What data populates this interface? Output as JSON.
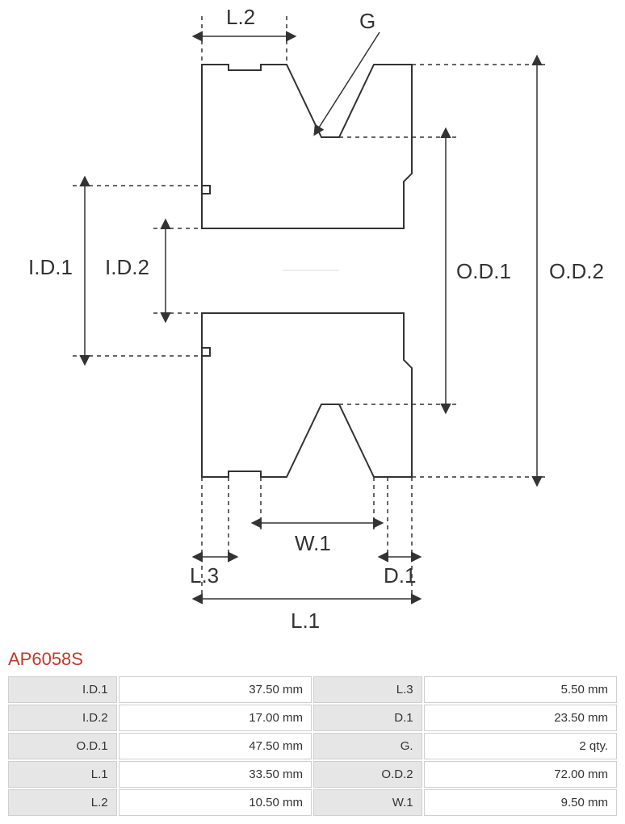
{
  "part": {
    "number": "AP6058S"
  },
  "diagram": {
    "stroke": "#333333",
    "stroke_width": 2,
    "dash": "5,5",
    "label_fontsize": 26,
    "labels": {
      "id1": "I.D.1",
      "id2": "I.D.2",
      "od1": "O.D.1",
      "od2": "O.D.2",
      "l1": "L.1",
      "l2": "L.2",
      "l3": "L.3",
      "d1": "D.1",
      "w1": "W.1",
      "g": "G"
    }
  },
  "specs": {
    "rows": [
      {
        "k1": "I.D.1",
        "v1": "37.50 mm",
        "k2": "L.3",
        "v2": "5.50 mm"
      },
      {
        "k1": "I.D.2",
        "v1": "17.00 mm",
        "k2": "D.1",
        "v2": "23.50 mm"
      },
      {
        "k1": "O.D.1",
        "v1": "47.50 mm",
        "k2": "G.",
        "v2": "2 qty."
      },
      {
        "k1": "L.1",
        "v1": "33.50 mm",
        "k2": "O.D.2",
        "v2": "72.00 mm"
      },
      {
        "k1": "L.2",
        "v1": "10.50 mm",
        "k2": "W.1",
        "v2": "9.50 mm"
      }
    ]
  },
  "table_style": {
    "header_bg": "#e6e6e6",
    "value_bg": "#ffffff",
    "border": "#cfcfcf",
    "title_color": "#c0392b"
  }
}
